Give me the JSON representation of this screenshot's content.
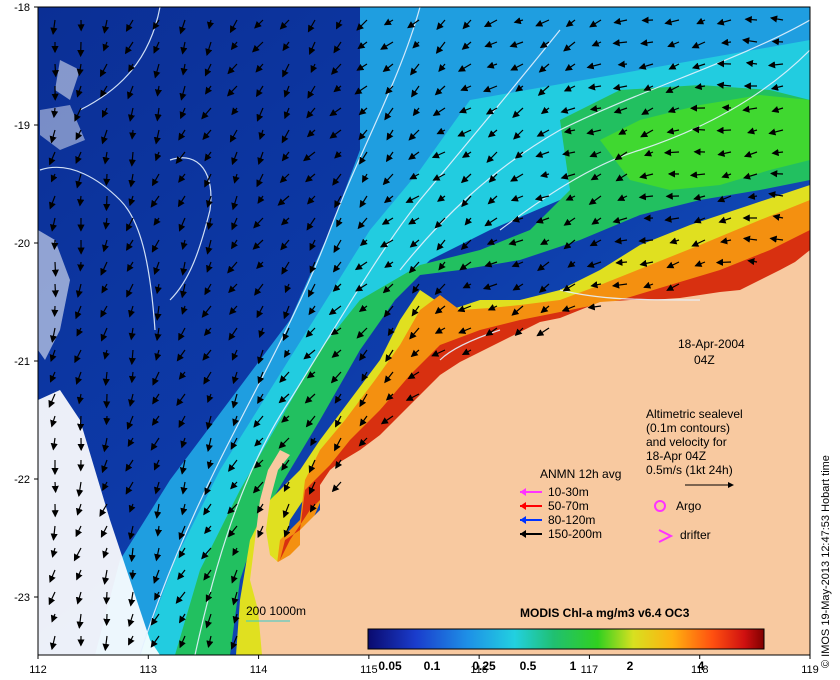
{
  "map": {
    "lon_ticks": [
      "112",
      "113",
      "114",
      "115",
      "116",
      "117",
      "118",
      "119"
    ],
    "lat_ticks": [
      "-18",
      "-19",
      "-20",
      "-21",
      "-22",
      "-23"
    ],
    "date": "18-Apr-2004",
    "time": "04Z",
    "credit": "© IMOS 19-May-2013 12:47:53 Hobart time",
    "velocity_legend": {
      "lines": [
        "Altimetric sealevel",
        "(0.1m contours)",
        "and velocity for",
        "18-Apr 04Z",
        "0.5m/s (1kt 24h)"
      ]
    },
    "anmn": {
      "title": "ANMN 12h avg",
      "items": [
        {
          "label": "10-30m",
          "color": "#ff33ff"
        },
        {
          "label": "50-70m",
          "color": "#ff0000"
        },
        {
          "label": "80-120m",
          "color": "#0033ff"
        },
        {
          "label": "150-200m",
          "color": "#000000"
        }
      ]
    },
    "argo": {
      "label": "Argo",
      "color": "#ff33ff"
    },
    "drifter": {
      "label": "drifter",
      "color": "#ff33ff"
    },
    "isobath": {
      "label": "200  1000m",
      "color": "#33cccc"
    },
    "colorbar": {
      "title": "MODIS Chl-a mg/m3 v6.4 OC3",
      "labels": [
        "0.05",
        "0.1",
        "0.25",
        "0.5",
        "1",
        "2",
        "4"
      ]
    },
    "colors": {
      "land": "#f8c9a0",
      "deep_blue": "#0a2a8a",
      "cloud": "#ffffff",
      "contour": "#e6f2ff"
    }
  }
}
